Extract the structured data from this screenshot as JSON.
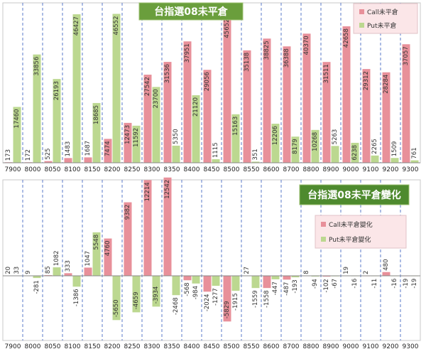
{
  "chart_data": [
    {
      "type": "bar",
      "title": "台指選08未平倉",
      "categories": [
        "7900",
        "8000",
        "8050",
        "8100",
        "8150",
        "8200",
        "8250",
        "8300",
        "8350",
        "8400",
        "8450",
        "8500",
        "8550",
        "8600",
        "8700",
        "8800",
        "8900",
        "9000",
        "9100",
        "9200",
        "9300"
      ],
      "series": [
        {
          "name": "Call未平倉",
          "color": "#e8909a",
          "values": [
            173,
            172,
            525,
            1483,
            1687,
            7474,
            12473,
            27542,
            31536,
            37951,
            29056,
            45652,
            35138,
            38825,
            36388,
            40370,
            31511,
            42658,
            29312,
            28284,
            37057
          ]
        },
        {
          "name": "Put未平倉",
          "color": "#bcd890",
          "values": [
            17460,
            33856,
            26193,
            46427,
            18685,
            46552,
            11592,
            23700,
            5350,
            21120,
            1115,
            15163,
            351,
            12206,
            8179,
            10268,
            5263,
            6238,
            2265,
            1509,
            761
          ]
        }
      ],
      "ylim": [
        0,
        50000
      ],
      "legend": "top-right",
      "grid": "vertical-dashed"
    },
    {
      "type": "bar",
      "title": "台指選08未平倉變化",
      "categories": [
        "7900",
        "8000",
        "8050",
        "8100",
        "8150",
        "8200",
        "8250",
        "8300",
        "8350",
        "8400",
        "8450",
        "8500",
        "8550",
        "8600",
        "8700",
        "8800",
        "8900",
        "9000",
        "9100",
        "9200",
        "9300"
      ],
      "series": [
        {
          "name": "Call未平倉變化",
          "color": "#e8909a",
          "values": [
            20,
            9,
            85,
            333,
            1047,
            4760,
            9382,
            12214,
            12542,
            -568,
            -2024,
            -5829,
            27,
            -1558,
            -487,
            8,
            -102,
            19,
            2,
            480,
            -19
          ]
        },
        {
          "name": "Put未平倉變化",
          "color": "#bcd890",
          "values": [
            33,
            -281,
            1082,
            -1386,
            5548,
            -5650,
            -4659,
            -3934,
            -2468,
            -984,
            -1277,
            -1915,
            -1559,
            -447,
            -193,
            -94,
            -67,
            -16,
            -11,
            -16,
            -19
          ]
        }
      ],
      "ylim": [
        -7000,
        13500
      ],
      "legend": "right",
      "grid": "vertical-dashed"
    }
  ]
}
